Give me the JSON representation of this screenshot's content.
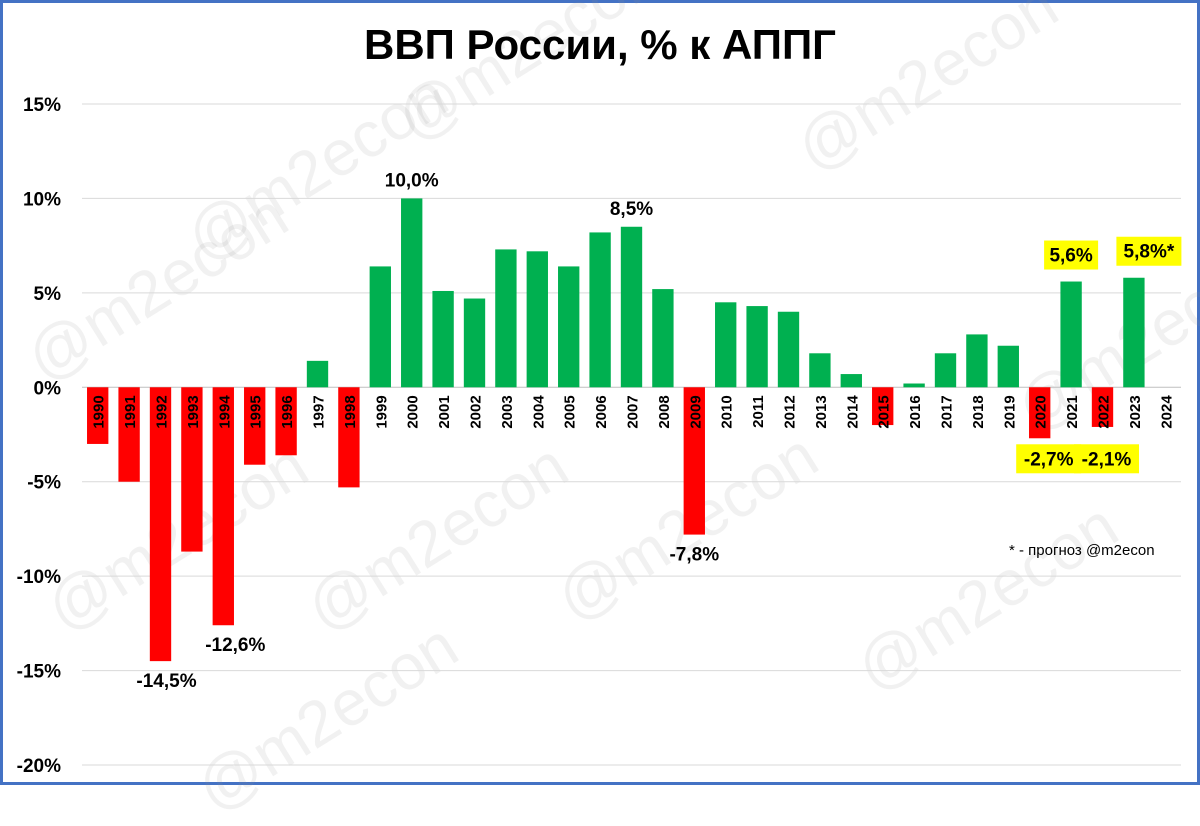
{
  "chart_data": {
    "type": "bar",
    "title": "ВВП России, % к АППГ",
    "xlabel": "",
    "ylabel": "",
    "ylim": [
      -20,
      15
    ],
    "yticks": [
      15,
      10,
      5,
      0,
      -5,
      -10,
      -15,
      -20
    ],
    "ytick_labels": [
      "15%",
      "10%",
      "5%",
      "0%",
      "-5%",
      "-10%",
      "-15%",
      "-20%"
    ],
    "grid": true,
    "categories": [
      "1990",
      "1991",
      "1992",
      "1993",
      "1994",
      "1995",
      "1996",
      "1997",
      "1998",
      "1999",
      "2000",
      "2001",
      "2002",
      "2003",
      "2004",
      "2005",
      "2006",
      "2007",
      "2008",
      "2009",
      "2010",
      "2011",
      "2012",
      "2013",
      "2014",
      "2015",
      "2016",
      "2017",
      "2018",
      "2019",
      "2020",
      "2021",
      "2022",
      "2023",
      "2024"
    ],
    "values": [
      -3.0,
      -5.0,
      -14.5,
      -8.7,
      -12.6,
      -4.1,
      -3.6,
      1.4,
      -5.3,
      6.4,
      10.0,
      5.1,
      4.7,
      7.3,
      7.2,
      6.4,
      8.2,
      8.5,
      5.2,
      -7.8,
      4.5,
      4.3,
      4.0,
      1.8,
      0.7,
      -2.0,
      0.2,
      1.8,
      2.8,
      2.2,
      -2.7,
      5.6,
      -2.1,
      5.8,
      null
    ],
    "colors": {
      "positive": "#00b050",
      "negative": "#ff0000",
      "highlight": "#ffff00",
      "grid": "#d9d9d9",
      "frame": "#4472c4"
    },
    "data_labels": [
      {
        "category": "1992",
        "text": "-14,5%",
        "highlight": false
      },
      {
        "category": "1994",
        "text": "-12,6%",
        "highlight": false
      },
      {
        "category": "2000",
        "text": "10,0%",
        "highlight": false
      },
      {
        "category": "2007",
        "text": "8,5%",
        "highlight": false
      },
      {
        "category": "2009",
        "text": "-7,8%",
        "highlight": false
      },
      {
        "category": "2020",
        "text": "-2,7%",
        "highlight": true
      },
      {
        "category": "2021",
        "text": "5,6%",
        "highlight": true
      },
      {
        "category": "2022",
        "text": "-2,1%",
        "highlight": true
      },
      {
        "category": "2023",
        "text": "5,8%*",
        "highlight": true
      }
    ],
    "annotations": [
      "* - прогноз @m2econ"
    ]
  },
  "watermark": "@m2econ"
}
